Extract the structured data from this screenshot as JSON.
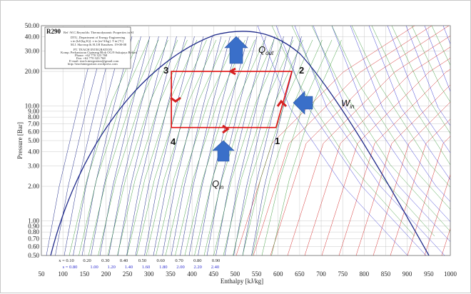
{
  "chart_data": {
    "type": "line",
    "title": "R290",
    "subtitle": "Ref :W.C.Reynolds: Thermodynamic Properties in SI",
    "xlabel": "Enthalpy [kJ/kg]",
    "ylabel": "Pressure [Bar]",
    "xlim": [
      50,
      1000
    ],
    "ylim": [
      0.5,
      50
    ],
    "yscale": "log",
    "grid": true,
    "x_ticks": [
      "50",
      "100",
      "150",
      "200",
      "250",
      "300",
      "350",
      "400",
      "450",
      "500",
      "550",
      "600",
      "650",
      "700",
      "750",
      "800",
      "850",
      "900",
      "950",
      "1000"
    ],
    "y_ticks": [
      {
        "v": 50,
        "label": "50.00"
      },
      {
        "v": 40,
        "label": "40.00"
      },
      {
        "v": 30,
        "label": "30.00"
      },
      {
        "v": 20,
        "label": "20.00"
      },
      {
        "v": 10,
        "label": "10.00"
      },
      {
        "v": 9,
        "label": "9.00"
      },
      {
        "v": 8,
        "label": "8.00"
      },
      {
        "v": 7,
        "label": "7.00"
      },
      {
        "v": 6,
        "label": "6.00"
      },
      {
        "v": 5,
        "label": "5.00"
      },
      {
        "v": 4,
        "label": "4.00"
      },
      {
        "v": 3,
        "label": "3.00"
      },
      {
        "v": 2,
        "label": "2.00"
      },
      {
        "v": 1,
        "label": "1.00"
      },
      {
        "v": 0.9,
        "label": "0.90"
      },
      {
        "v": 0.8,
        "label": "0.80"
      },
      {
        "v": 0.7,
        "label": "0.70"
      },
      {
        "v": 0.6,
        "label": "0.60"
      },
      {
        "v": 0.5,
        "label": "0.50"
      }
    ],
    "quality_labels": {
      "x_row": [
        "x = 0.10",
        "0.20",
        "0.30",
        "0.40",
        "0.50",
        "0.60",
        "0.70",
        "0.80",
        "0.90"
      ],
      "s_row": [
        "s = 0.80",
        "1.00",
        "1.20",
        "1.40",
        "1.60",
        "1.80",
        "2.00",
        "2.20",
        "2.40"
      ]
    },
    "cycle": {
      "points": [
        {
          "label": "1",
          "h": 595,
          "p": 6.5
        },
        {
          "label": "2",
          "h": 632,
          "p": 20
        },
        {
          "label": "3",
          "h": 352,
          "p": 20
        },
        {
          "label": "4",
          "h": 352,
          "p": 6.5
        }
      ],
      "flows": [
        {
          "name": "Q",
          "sub": "out"
        },
        {
          "name": "W",
          "sub": "in"
        },
        {
          "name": "Q",
          "sub": "in"
        }
      ]
    }
  },
  "info_box": {
    "title": "R290",
    "subtitle": "Ref :W.C.Reynolds: Thermodynamic Properties in SI",
    "lines": [
      "DTU, Department of Energy Engineering",
      "s in [kJ/(kg K)]. v in [m^3/kg]. T in [ºC]",
      "M.J. Skovrup & H.J.H Knudsen. 19-08-08",
      "",
      "PT. TEACH INTEGRATION",
      "Komp. Perkantoran Cipinang Blok OG/9 Sukajaya Bekasi",
      "Phone: +62 770 323 768",
      "Fax: +62 770 323 768",
      "E-mail: teach.integration@gmail.com",
      "http://teachintegration.wordpress.com"
    ]
  },
  "colors": {
    "grid": "#bdbdbd",
    "saturation": "#1f2a8a",
    "isotherm": "#1f2a8a",
    "quality": "#1a8a1a",
    "isentrope": "#2b2bd0",
    "isochore": "#d01a1a",
    "cycle": "#e01010",
    "arrow_blue": "#3a6fc9",
    "arrow_red": "#d42020"
  }
}
